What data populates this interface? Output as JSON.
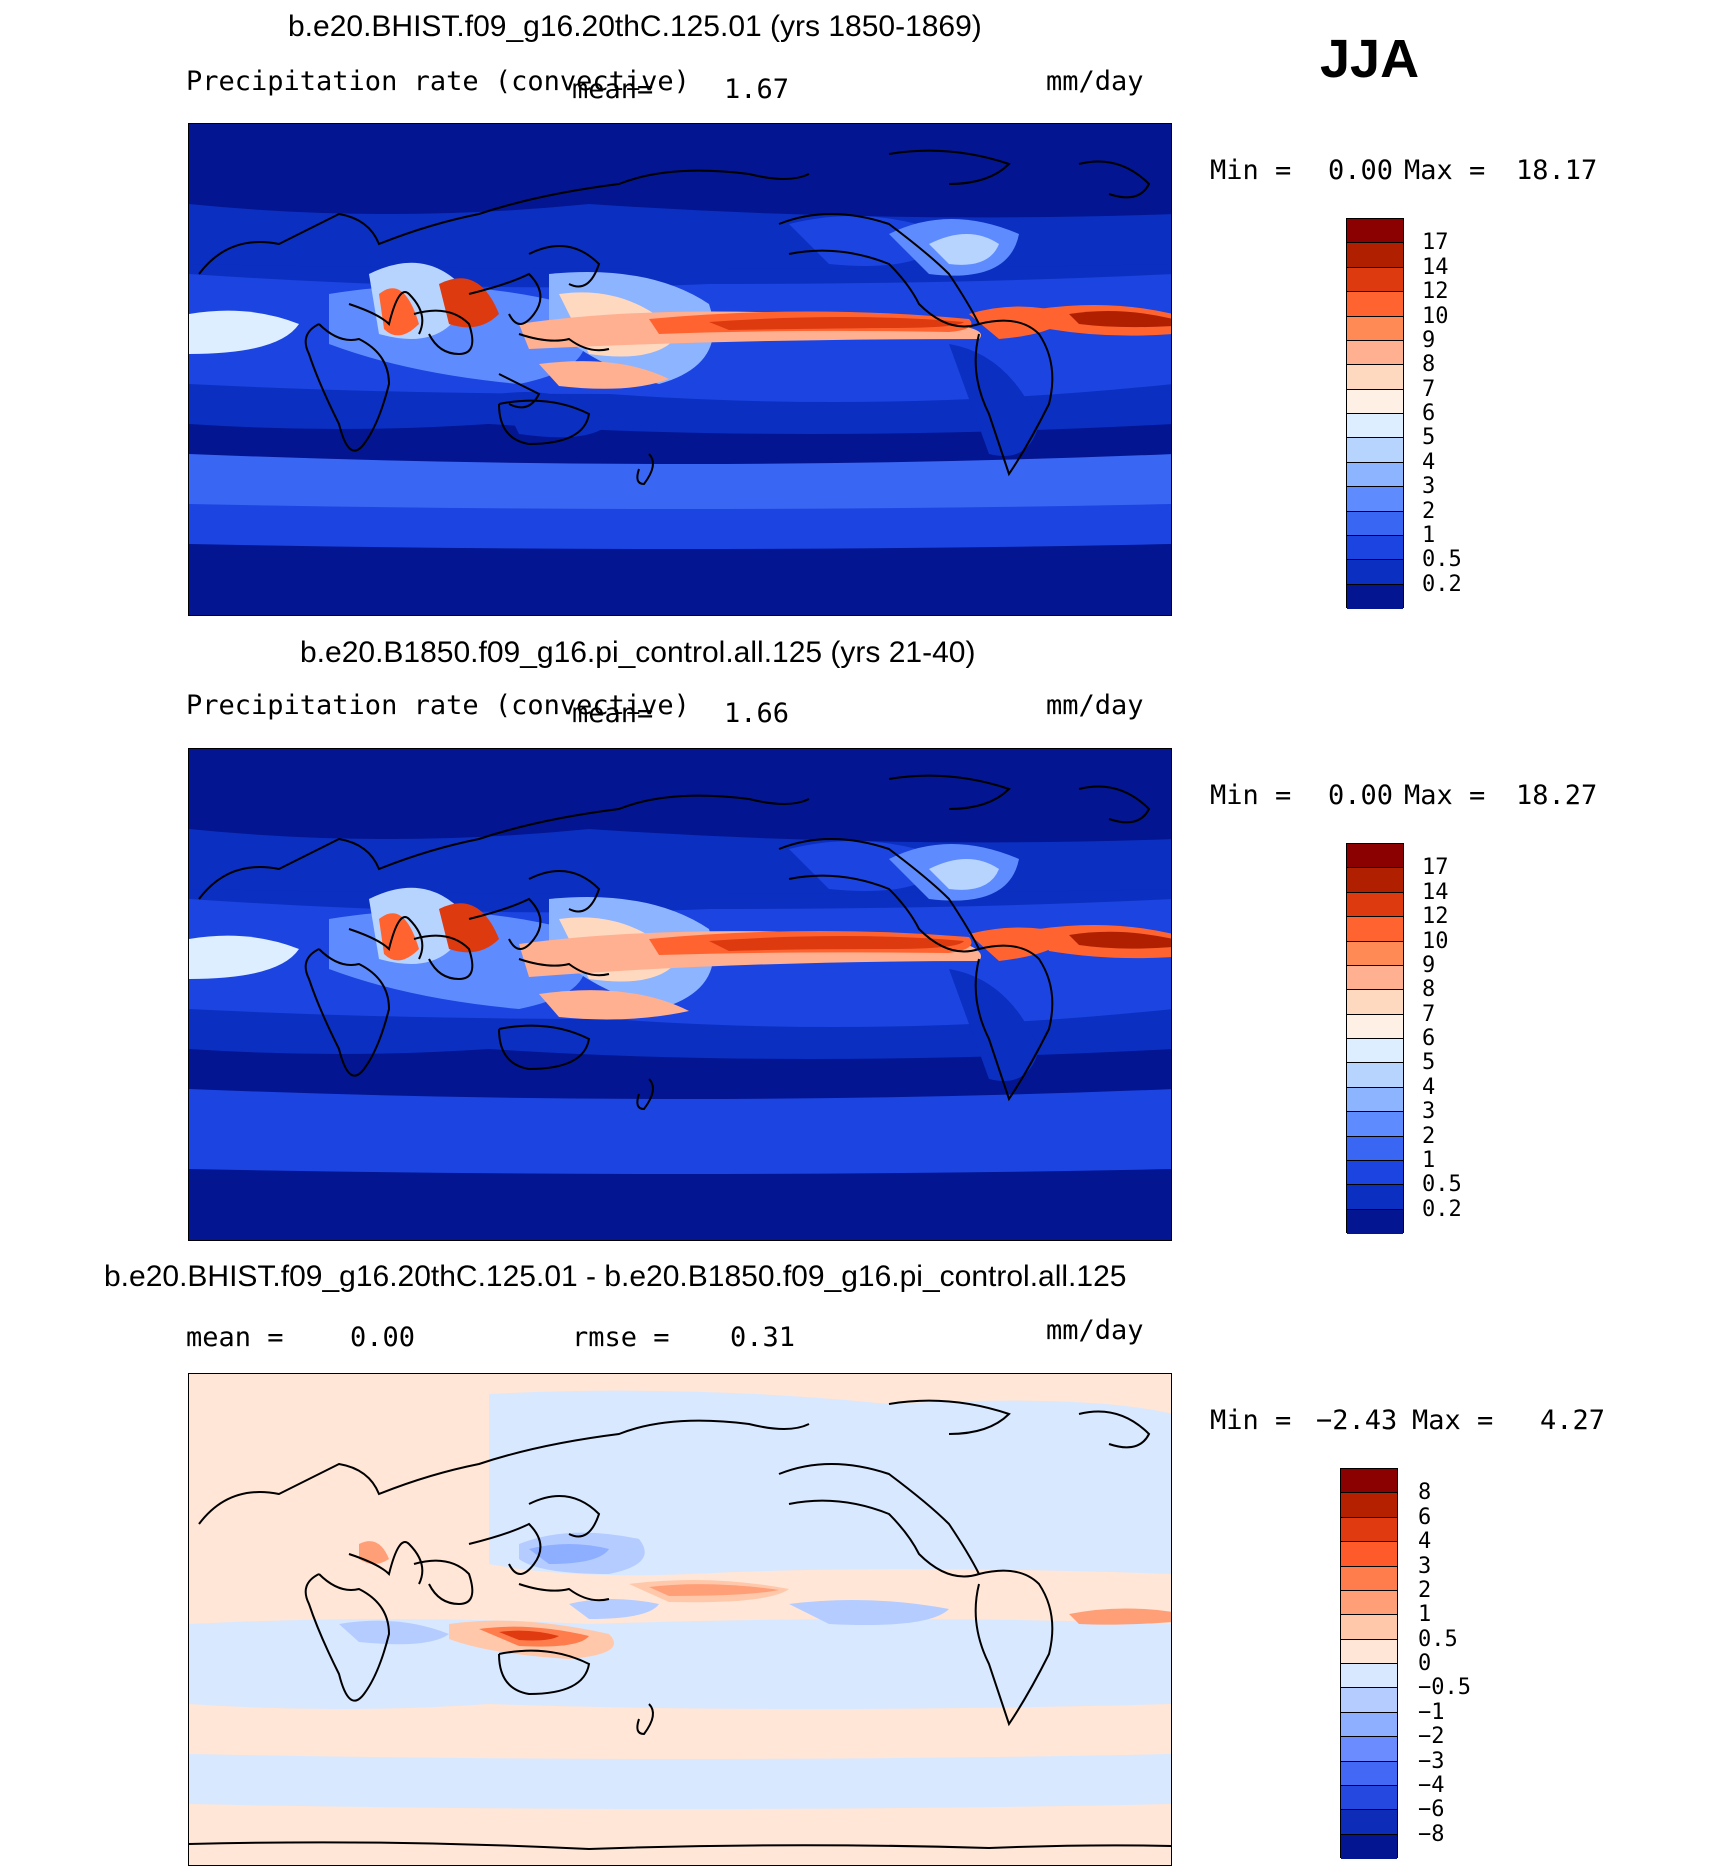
{
  "season": "JJA",
  "panels": [
    {
      "id": "top",
      "title": "b.e20.BHIST.f09_g16.20thC.125.01 (yrs 1850-1869)",
      "variable": "Precipitation rate (convective)",
      "mean_label": "mean=",
      "mean_value": "1.67",
      "units": "mm/day",
      "min_label": "Min =",
      "min_value": "0.00",
      "max_label": "Max =",
      "max_value": "18.17",
      "colorbar_labels": [
        "17",
        "14",
        "12",
        "10",
        "9",
        "8",
        "7",
        "6",
        "5",
        "4",
        "3",
        "2",
        "1",
        "0.5",
        "0.2"
      ],
      "colorbar_colors": [
        "#8b0000",
        "#b02000",
        "#dd3a10",
        "#ff6430",
        "#ff8a55",
        "#ffb090",
        "#ffd8c0",
        "#fff0e6",
        "#dceeff",
        "#b7d4ff",
        "#8cb4ff",
        "#5e8cff",
        "#3a66f4",
        "#1c44e0",
        "#0b2fc0",
        "#031590"
      ]
    },
    {
      "id": "middle",
      "title": "b.e20.B1850.f09_g16.pi_control.all.125 (yrs 21-40)",
      "variable": "Precipitation rate (convective)",
      "mean_label": "mean=",
      "mean_value": "1.66",
      "units": "mm/day",
      "min_label": "Min =",
      "min_value": "0.00",
      "max_label": "Max =",
      "max_value": "18.27",
      "colorbar_labels": [
        "17",
        "14",
        "12",
        "10",
        "9",
        "8",
        "7",
        "6",
        "5",
        "4",
        "3",
        "2",
        "1",
        "0.5",
        "0.2"
      ],
      "colorbar_colors": [
        "#8b0000",
        "#b02000",
        "#dd3a10",
        "#ff6430",
        "#ff8a55",
        "#ffb090",
        "#ffd8c0",
        "#fff0e6",
        "#dceeff",
        "#b7d4ff",
        "#8cb4ff",
        "#5e8cff",
        "#3a66f4",
        "#1c44e0",
        "#0b2fc0",
        "#031590"
      ]
    },
    {
      "id": "difference",
      "title": "b.e20.BHIST.f09_g16.20thC.125.01 - b.e20.B1850.f09_g16.pi_control.all.125",
      "mean_label": "mean =",
      "mean_value": "0.00",
      "rmse_label": "rmse =",
      "rmse_value": "0.31",
      "units": "mm/day",
      "min_label": "Min =",
      "min_value": "−2.43",
      "max_label": "Max =",
      "max_value": "4.27",
      "colorbar_labels": [
        "8",
        "6",
        "4",
        "3",
        "2",
        "1",
        "0.5",
        "0",
        "−0.5",
        "−1",
        "−2",
        "−3",
        "−4",
        "−6",
        "−8"
      ],
      "colorbar_colors": [
        "#8b0000",
        "#b52000",
        "#e03a10",
        "#ff5a2a",
        "#ff7c4c",
        "#ff9f78",
        "#ffc8aa",
        "#ffe6d6",
        "#d8e8ff",
        "#b4ccff",
        "#8eaeff",
        "#6a8cff",
        "#4468f6",
        "#2448e0",
        "#0d2cb8",
        "#031590"
      ]
    }
  ]
}
